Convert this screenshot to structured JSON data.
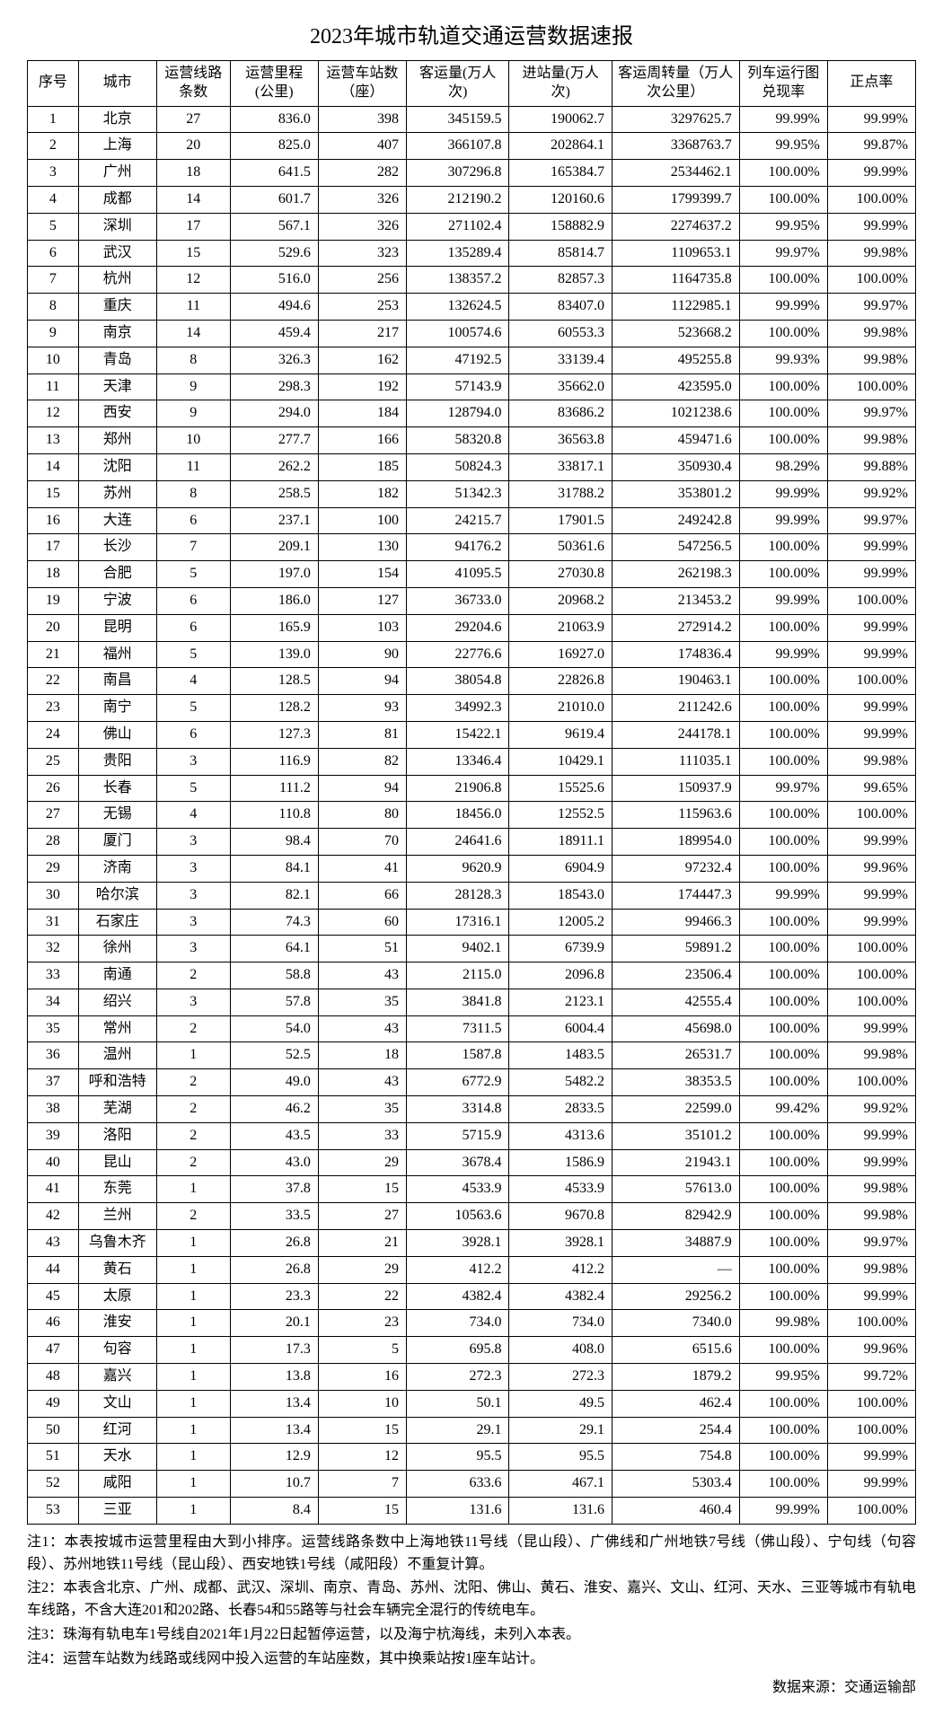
{
  "title": "2023年城市轨道交通运营数据速报",
  "columns": [
    {
      "key": "idx",
      "label": "序号",
      "class": "col-idx",
      "align": "center"
    },
    {
      "key": "city",
      "label": "城市",
      "class": "col-city",
      "align": "center"
    },
    {
      "key": "lines",
      "label": "运营线路条数",
      "class": "col-lines",
      "align": "center"
    },
    {
      "key": "mileage",
      "label": "运营里程(公里)",
      "class": "col-mileage",
      "align": "num"
    },
    {
      "key": "stations",
      "label": "运营车站数（座）",
      "class": "col-stations",
      "align": "num"
    },
    {
      "key": "pax",
      "label": "客运量(万人次)",
      "class": "col-passengers",
      "align": "num"
    },
    {
      "key": "entries",
      "label": "进站量(万人次)",
      "class": "col-entries",
      "align": "num"
    },
    {
      "key": "turnover",
      "label": "客运周转量（万人次公里）",
      "class": "col-turnover",
      "align": "num"
    },
    {
      "key": "diagram",
      "label": "列车运行图兑现率",
      "class": "col-diagram",
      "align": "num"
    },
    {
      "key": "ontime",
      "label": "正点率",
      "class": "col-ontime",
      "align": "num"
    }
  ],
  "rows": [
    {
      "idx": "1",
      "city": "北京",
      "lines": "27",
      "mileage": "836.0",
      "stations": "398",
      "pax": "345159.5",
      "entries": "190062.7",
      "turnover": "3297625.7",
      "diagram": "99.99%",
      "ontime": "99.99%"
    },
    {
      "idx": "2",
      "city": "上海",
      "lines": "20",
      "mileage": "825.0",
      "stations": "407",
      "pax": "366107.8",
      "entries": "202864.1",
      "turnover": "3368763.7",
      "diagram": "99.95%",
      "ontime": "99.87%"
    },
    {
      "idx": "3",
      "city": "广州",
      "lines": "18",
      "mileage": "641.5",
      "stations": "282",
      "pax": "307296.8",
      "entries": "165384.7",
      "turnover": "2534462.1",
      "diagram": "100.00%",
      "ontime": "99.99%"
    },
    {
      "idx": "4",
      "city": "成都",
      "lines": "14",
      "mileage": "601.7",
      "stations": "326",
      "pax": "212190.2",
      "entries": "120160.6",
      "turnover": "1799399.7",
      "diagram": "100.00%",
      "ontime": "100.00%"
    },
    {
      "idx": "5",
      "city": "深圳",
      "lines": "17",
      "mileage": "567.1",
      "stations": "326",
      "pax": "271102.4",
      "entries": "158882.9",
      "turnover": "2274637.2",
      "diagram": "99.95%",
      "ontime": "99.99%"
    },
    {
      "idx": "6",
      "city": "武汉",
      "lines": "15",
      "mileage": "529.6",
      "stations": "323",
      "pax": "135289.4",
      "entries": "85814.7",
      "turnover": "1109653.1",
      "diagram": "99.97%",
      "ontime": "99.98%"
    },
    {
      "idx": "7",
      "city": "杭州",
      "lines": "12",
      "mileage": "516.0",
      "stations": "256",
      "pax": "138357.2",
      "entries": "82857.3",
      "turnover": "1164735.8",
      "diagram": "100.00%",
      "ontime": "100.00%"
    },
    {
      "idx": "8",
      "city": "重庆",
      "lines": "11",
      "mileage": "494.6",
      "stations": "253",
      "pax": "132624.5",
      "entries": "83407.0",
      "turnover": "1122985.1",
      "diagram": "99.99%",
      "ontime": "99.97%"
    },
    {
      "idx": "9",
      "city": "南京",
      "lines": "14",
      "mileage": "459.4",
      "stations": "217",
      "pax": "100574.6",
      "entries": "60553.3",
      "turnover": "523668.2",
      "diagram": "100.00%",
      "ontime": "99.98%"
    },
    {
      "idx": "10",
      "city": "青岛",
      "lines": "8",
      "mileage": "326.3",
      "stations": "162",
      "pax": "47192.5",
      "entries": "33139.4",
      "turnover": "495255.8",
      "diagram": "99.93%",
      "ontime": "99.98%"
    },
    {
      "idx": "11",
      "city": "天津",
      "lines": "9",
      "mileage": "298.3",
      "stations": "192",
      "pax": "57143.9",
      "entries": "35662.0",
      "turnover": "423595.0",
      "diagram": "100.00%",
      "ontime": "100.00%"
    },
    {
      "idx": "12",
      "city": "西安",
      "lines": "9",
      "mileage": "294.0",
      "stations": "184",
      "pax": "128794.0",
      "entries": "83686.2",
      "turnover": "1021238.6",
      "diagram": "100.00%",
      "ontime": "99.97%"
    },
    {
      "idx": "13",
      "city": "郑州",
      "lines": "10",
      "mileage": "277.7",
      "stations": "166",
      "pax": "58320.8",
      "entries": "36563.8",
      "turnover": "459471.6",
      "diagram": "100.00%",
      "ontime": "99.98%"
    },
    {
      "idx": "14",
      "city": "沈阳",
      "lines": "11",
      "mileage": "262.2",
      "stations": "185",
      "pax": "50824.3",
      "entries": "33817.1",
      "turnover": "350930.4",
      "diagram": "98.29%",
      "ontime": "99.88%"
    },
    {
      "idx": "15",
      "city": "苏州",
      "lines": "8",
      "mileage": "258.5",
      "stations": "182",
      "pax": "51342.3",
      "entries": "31788.2",
      "turnover": "353801.2",
      "diagram": "99.99%",
      "ontime": "99.92%"
    },
    {
      "idx": "16",
      "city": "大连",
      "lines": "6",
      "mileage": "237.1",
      "stations": "100",
      "pax": "24215.7",
      "entries": "17901.5",
      "turnover": "249242.8",
      "diagram": "99.99%",
      "ontime": "99.97%"
    },
    {
      "idx": "17",
      "city": "长沙",
      "lines": "7",
      "mileage": "209.1",
      "stations": "130",
      "pax": "94176.2",
      "entries": "50361.6",
      "turnover": "547256.5",
      "diagram": "100.00%",
      "ontime": "99.99%"
    },
    {
      "idx": "18",
      "city": "合肥",
      "lines": "5",
      "mileage": "197.0",
      "stations": "154",
      "pax": "41095.5",
      "entries": "27030.8",
      "turnover": "262198.3",
      "diagram": "100.00%",
      "ontime": "99.99%"
    },
    {
      "idx": "19",
      "city": "宁波",
      "lines": "6",
      "mileage": "186.0",
      "stations": "127",
      "pax": "36733.0",
      "entries": "20968.2",
      "turnover": "213453.2",
      "diagram": "99.99%",
      "ontime": "100.00%"
    },
    {
      "idx": "20",
      "city": "昆明",
      "lines": "6",
      "mileage": "165.9",
      "stations": "103",
      "pax": "29204.6",
      "entries": "21063.9",
      "turnover": "272914.2",
      "diagram": "100.00%",
      "ontime": "99.99%"
    },
    {
      "idx": "21",
      "city": "福州",
      "lines": "5",
      "mileage": "139.0",
      "stations": "90",
      "pax": "22776.6",
      "entries": "16927.0",
      "turnover": "174836.4",
      "diagram": "99.99%",
      "ontime": "99.99%"
    },
    {
      "idx": "22",
      "city": "南昌",
      "lines": "4",
      "mileage": "128.5",
      "stations": "94",
      "pax": "38054.8",
      "entries": "22826.8",
      "turnover": "190463.1",
      "diagram": "100.00%",
      "ontime": "100.00%"
    },
    {
      "idx": "23",
      "city": "南宁",
      "lines": "5",
      "mileage": "128.2",
      "stations": "93",
      "pax": "34992.3",
      "entries": "21010.0",
      "turnover": "211242.6",
      "diagram": "100.00%",
      "ontime": "99.99%"
    },
    {
      "idx": "24",
      "city": "佛山",
      "lines": "6",
      "mileage": "127.3",
      "stations": "81",
      "pax": "15422.1",
      "entries": "9619.4",
      "turnover": "244178.1",
      "diagram": "100.00%",
      "ontime": "99.99%"
    },
    {
      "idx": "25",
      "city": "贵阳",
      "lines": "3",
      "mileage": "116.9",
      "stations": "82",
      "pax": "13346.4",
      "entries": "10429.1",
      "turnover": "111035.1",
      "diagram": "100.00%",
      "ontime": "99.98%"
    },
    {
      "idx": "26",
      "city": "长春",
      "lines": "5",
      "mileage": "111.2",
      "stations": "94",
      "pax": "21906.8",
      "entries": "15525.6",
      "turnover": "150937.9",
      "diagram": "99.97%",
      "ontime": "99.65%"
    },
    {
      "idx": "27",
      "city": "无锡",
      "lines": "4",
      "mileage": "110.8",
      "stations": "80",
      "pax": "18456.0",
      "entries": "12552.5",
      "turnover": "115963.6",
      "diagram": "100.00%",
      "ontime": "100.00%"
    },
    {
      "idx": "28",
      "city": "厦门",
      "lines": "3",
      "mileage": "98.4",
      "stations": "70",
      "pax": "24641.6",
      "entries": "18911.1",
      "turnover": "189954.0",
      "diagram": "100.00%",
      "ontime": "99.99%"
    },
    {
      "idx": "29",
      "city": "济南",
      "lines": "3",
      "mileage": "84.1",
      "stations": "41",
      "pax": "9620.9",
      "entries": "6904.9",
      "turnover": "97232.4",
      "diagram": "100.00%",
      "ontime": "99.96%"
    },
    {
      "idx": "30",
      "city": "哈尔滨",
      "lines": "3",
      "mileage": "82.1",
      "stations": "66",
      "pax": "28128.3",
      "entries": "18543.0",
      "turnover": "174447.3",
      "diagram": "99.99%",
      "ontime": "99.99%"
    },
    {
      "idx": "31",
      "city": "石家庄",
      "lines": "3",
      "mileage": "74.3",
      "stations": "60",
      "pax": "17316.1",
      "entries": "12005.2",
      "turnover": "99466.3",
      "diagram": "100.00%",
      "ontime": "99.99%"
    },
    {
      "idx": "32",
      "city": "徐州",
      "lines": "3",
      "mileage": "64.1",
      "stations": "51",
      "pax": "9402.1",
      "entries": "6739.9",
      "turnover": "59891.2",
      "diagram": "100.00%",
      "ontime": "100.00%"
    },
    {
      "idx": "33",
      "city": "南通",
      "lines": "2",
      "mileage": "58.8",
      "stations": "43",
      "pax": "2115.0",
      "entries": "2096.8",
      "turnover": "23506.4",
      "diagram": "100.00%",
      "ontime": "100.00%"
    },
    {
      "idx": "34",
      "city": "绍兴",
      "lines": "3",
      "mileage": "57.8",
      "stations": "35",
      "pax": "3841.8",
      "entries": "2123.1",
      "turnover": "42555.4",
      "diagram": "100.00%",
      "ontime": "100.00%"
    },
    {
      "idx": "35",
      "city": "常州",
      "lines": "2",
      "mileage": "54.0",
      "stations": "43",
      "pax": "7311.5",
      "entries": "6004.4",
      "turnover": "45698.0",
      "diagram": "100.00%",
      "ontime": "99.99%"
    },
    {
      "idx": "36",
      "city": "温州",
      "lines": "1",
      "mileage": "52.5",
      "stations": "18",
      "pax": "1587.8",
      "entries": "1483.5",
      "turnover": "26531.7",
      "diagram": "100.00%",
      "ontime": "99.98%"
    },
    {
      "idx": "37",
      "city": "呼和浩特",
      "lines": "2",
      "mileage": "49.0",
      "stations": "43",
      "pax": "6772.9",
      "entries": "5482.2",
      "turnover": "38353.5",
      "diagram": "100.00%",
      "ontime": "100.00%"
    },
    {
      "idx": "38",
      "city": "芜湖",
      "lines": "2",
      "mileage": "46.2",
      "stations": "35",
      "pax": "3314.8",
      "entries": "2833.5",
      "turnover": "22599.0",
      "diagram": "99.42%",
      "ontime": "99.92%"
    },
    {
      "idx": "39",
      "city": "洛阳",
      "lines": "2",
      "mileage": "43.5",
      "stations": "33",
      "pax": "5715.9",
      "entries": "4313.6",
      "turnover": "35101.2",
      "diagram": "100.00%",
      "ontime": "99.99%"
    },
    {
      "idx": "40",
      "city": "昆山",
      "lines": "2",
      "mileage": "43.0",
      "stations": "29",
      "pax": "3678.4",
      "entries": "1586.9",
      "turnover": "21943.1",
      "diagram": "100.00%",
      "ontime": "99.99%"
    },
    {
      "idx": "41",
      "city": "东莞",
      "lines": "1",
      "mileage": "37.8",
      "stations": "15",
      "pax": "4533.9",
      "entries": "4533.9",
      "turnover": "57613.0",
      "diagram": "100.00%",
      "ontime": "99.98%"
    },
    {
      "idx": "42",
      "city": "兰州",
      "lines": "2",
      "mileage": "33.5",
      "stations": "27",
      "pax": "10563.6",
      "entries": "9670.8",
      "turnover": "82942.9",
      "diagram": "100.00%",
      "ontime": "99.98%"
    },
    {
      "idx": "43",
      "city": "乌鲁木齐",
      "lines": "1",
      "mileage": "26.8",
      "stations": "21",
      "pax": "3928.1",
      "entries": "3928.1",
      "turnover": "34887.9",
      "diagram": "100.00%",
      "ontime": "99.97%"
    },
    {
      "idx": "44",
      "city": "黄石",
      "lines": "1",
      "mileage": "26.8",
      "stations": "29",
      "pax": "412.2",
      "entries": "412.2",
      "turnover": "—",
      "diagram": "100.00%",
      "ontime": "99.98%"
    },
    {
      "idx": "45",
      "city": "太原",
      "lines": "1",
      "mileage": "23.3",
      "stations": "22",
      "pax": "4382.4",
      "entries": "4382.4",
      "turnover": "29256.2",
      "diagram": "100.00%",
      "ontime": "99.99%"
    },
    {
      "idx": "46",
      "city": "淮安",
      "lines": "1",
      "mileage": "20.1",
      "stations": "23",
      "pax": "734.0",
      "entries": "734.0",
      "turnover": "7340.0",
      "diagram": "99.98%",
      "ontime": "100.00%"
    },
    {
      "idx": "47",
      "city": "句容",
      "lines": "1",
      "mileage": "17.3",
      "stations": "5",
      "pax": "695.8",
      "entries": "408.0",
      "turnover": "6515.6",
      "diagram": "100.00%",
      "ontime": "99.96%"
    },
    {
      "idx": "48",
      "city": "嘉兴",
      "lines": "1",
      "mileage": "13.8",
      "stations": "16",
      "pax": "272.3",
      "entries": "272.3",
      "turnover": "1879.2",
      "diagram": "99.95%",
      "ontime": "99.72%"
    },
    {
      "idx": "49",
      "city": "文山",
      "lines": "1",
      "mileage": "13.4",
      "stations": "10",
      "pax": "50.1",
      "entries": "49.5",
      "turnover": "462.4",
      "diagram": "100.00%",
      "ontime": "100.00%"
    },
    {
      "idx": "50",
      "city": "红河",
      "lines": "1",
      "mileage": "13.4",
      "stations": "15",
      "pax": "29.1",
      "entries": "29.1",
      "turnover": "254.4",
      "diagram": "100.00%",
      "ontime": "100.00%"
    },
    {
      "idx": "51",
      "city": "天水",
      "lines": "1",
      "mileage": "12.9",
      "stations": "12",
      "pax": "95.5",
      "entries": "95.5",
      "turnover": "754.8",
      "diagram": "100.00%",
      "ontime": "99.99%"
    },
    {
      "idx": "52",
      "city": "咸阳",
      "lines": "1",
      "mileage": "10.7",
      "stations": "7",
      "pax": "633.6",
      "entries": "467.1",
      "turnover": "5303.4",
      "diagram": "100.00%",
      "ontime": "99.99%"
    },
    {
      "idx": "53",
      "city": "三亚",
      "lines": "1",
      "mileage": "8.4",
      "stations": "15",
      "pax": "131.6",
      "entries": "131.6",
      "turnover": "460.4",
      "diagram": "99.99%",
      "ontime": "100.00%"
    }
  ],
  "footnotes": [
    "注1：本表按城市运营里程由大到小排序。运营线路条数中上海地铁11号线（昆山段）、广佛线和广州地铁7号线（佛山段）、宁句线（句容段）、苏州地铁11号线（昆山段）、西安地铁1号线（咸阳段）不重复计算。",
    "注2：本表含北京、广州、成都、武汉、深圳、南京、青岛、苏州、沈阳、佛山、黄石、淮安、嘉兴、文山、红河、天水、三亚等城市有轨电车线路，不含大连201和202路、长春54和55路等与社会车辆完全混行的传统电车。",
    "注3：珠海有轨电车1号线自2021年1月22日起暂停运营，以及海宁杭海线，未列入本表。",
    "注4：运营车站数为线路或线网中投入运营的车站座数，其中换乘站按1座车站计。"
  ],
  "source": "数据来源：交通运输部"
}
